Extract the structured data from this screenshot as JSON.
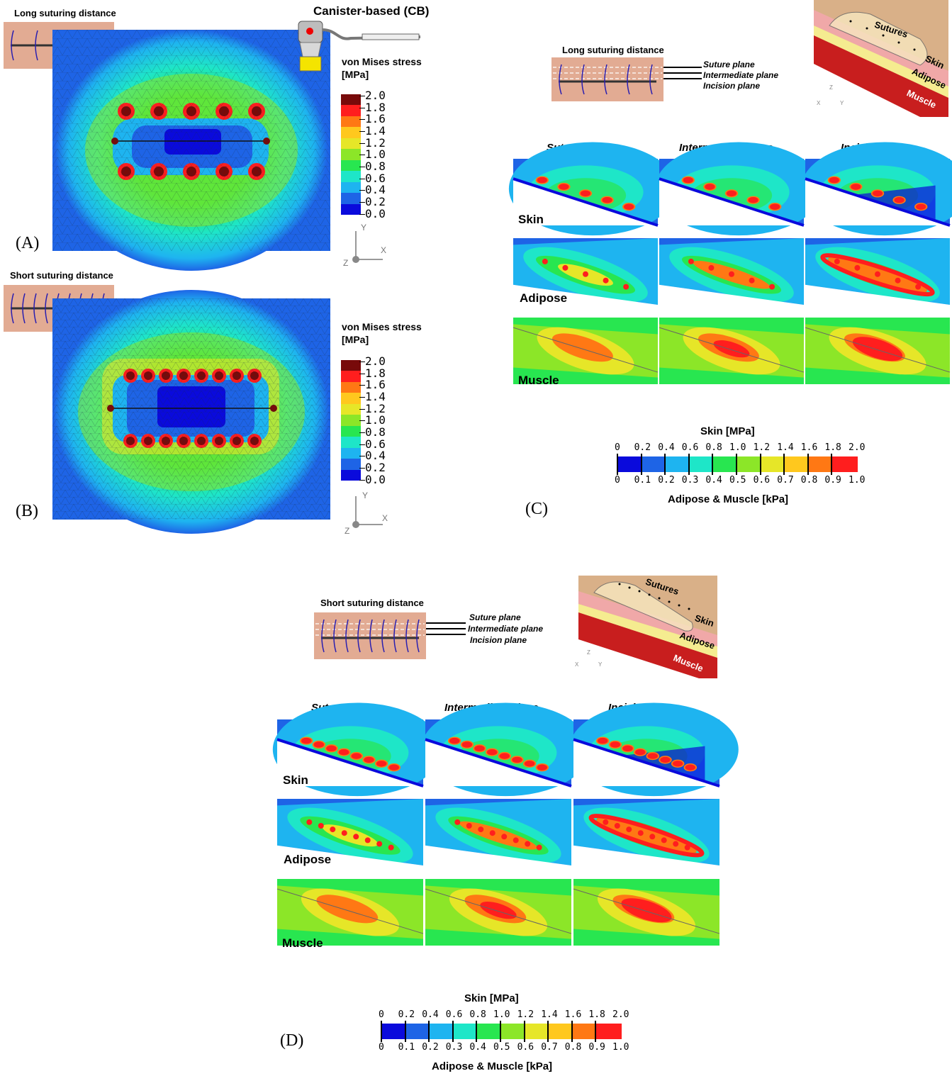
{
  "panels": {
    "A": {
      "tag": "(A)",
      "inset_title": "Long suturing distance",
      "device_title": "Canister-based (CB)",
      "legend_title": "von Mises stress",
      "legend_unit": "[MPa]"
    },
    "B": {
      "tag": "(B)",
      "inset_title": "Short suturing distance",
      "legend_title": "von Mises stress",
      "legend_unit": "[MPa]"
    },
    "C": {
      "tag": "(C)",
      "inset_title": "Long suturing distance"
    },
    "D": {
      "tag": "(D)",
      "inset_title": "Short suturing distance"
    }
  },
  "axes": {
    "x": "X",
    "y": "Y",
    "z": "Z"
  },
  "planes": [
    "Suture plane",
    "Intermediate plane",
    "Incision plane"
  ],
  "tissues": [
    "Skin",
    "Adipose",
    "Muscle"
  ],
  "schematic_labels": {
    "sutures": "Sutures",
    "skin": "Skin",
    "adipose": "Adipose",
    "muscle": "Muscle"
  },
  "legend_mpa": [
    "2.0",
    "1.8",
    "1.6",
    "1.4",
    "1.2",
    "1.0",
    "0.8",
    "0.6",
    "0.4",
    "0.2",
    "0.0"
  ],
  "colorbar": {
    "top_title": "Skin [MPa]",
    "bottom_title": "Adipose & Muscle [kPa]",
    "top_ticks": [
      "0",
      "0.2",
      "0.4",
      "0.6",
      "0.8",
      "1.0",
      "1.2",
      "1.4",
      "1.6",
      "1.8",
      "2.0"
    ],
    "bottom_ticks": [
      "0",
      "0.1",
      "0.2",
      "0.3",
      "0.4",
      "0.5",
      "0.6",
      "0.7",
      "0.8",
      "0.9",
      "1.0"
    ]
  },
  "colors": {
    "scale": [
      "#0a0adc",
      "#1e64e6",
      "#1eb4f0",
      "#1ee6c8",
      "#28e650",
      "#8ce628",
      "#e6e628",
      "#ffc81e",
      "#ff7814",
      "#ff1e1e",
      "#780a0a"
    ],
    "skin_tone": "#e2ab93",
    "suture": "#2a1fb0"
  }
}
